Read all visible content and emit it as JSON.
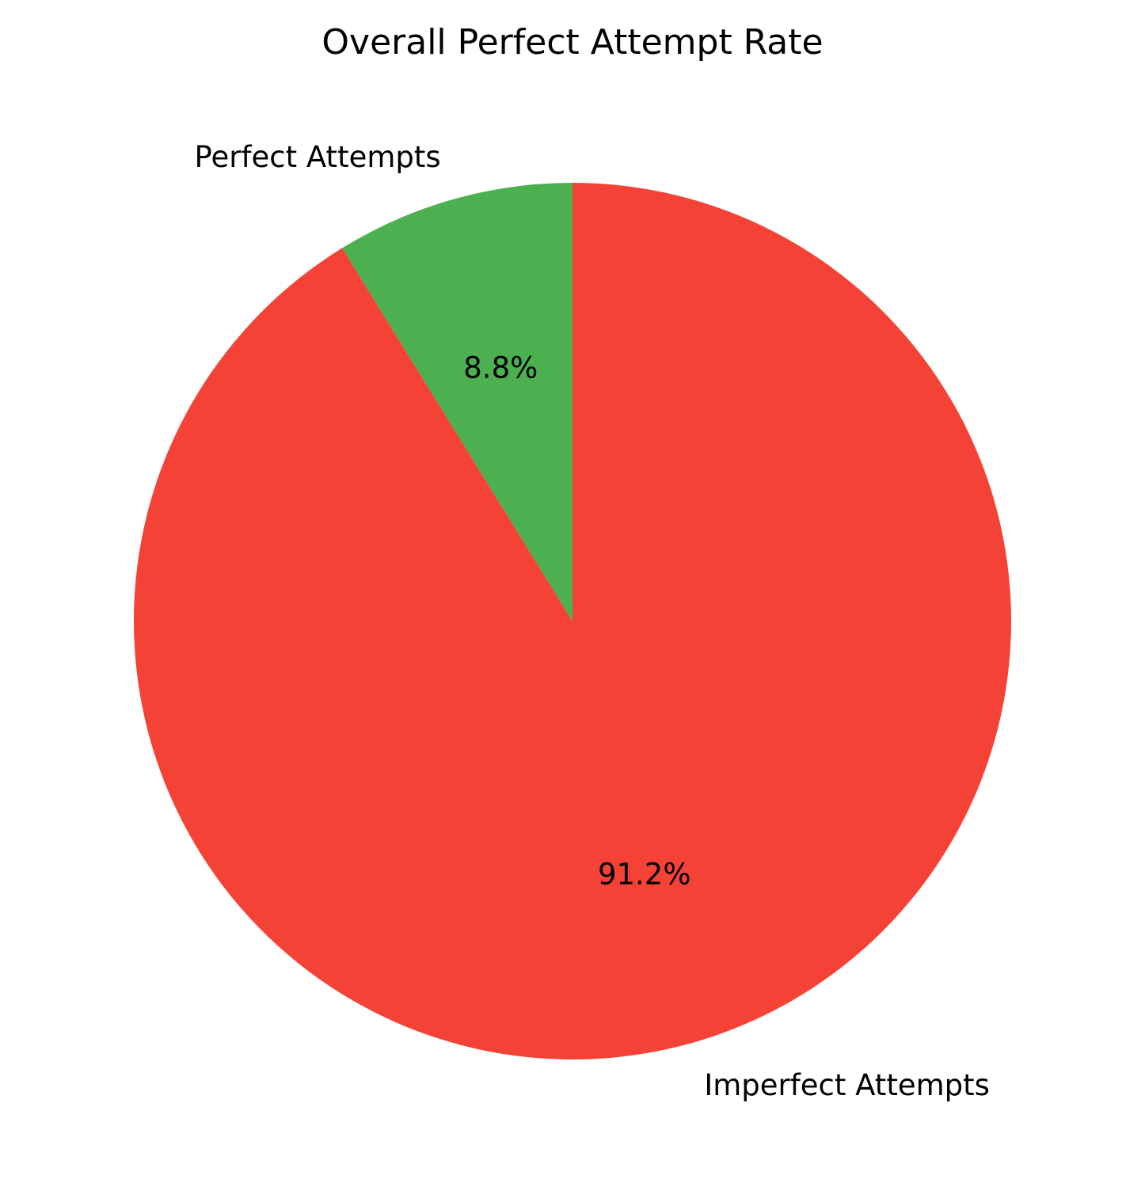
{
  "chart_data": {
    "type": "pie",
    "title": "Overall Perfect Attempt Rate",
    "start_angle_deg": 90,
    "direction": "counterclockwise",
    "slices": [
      {
        "label": "Perfect Attempts",
        "value": 8.8,
        "pct_label": "8.8%",
        "color": "#4caf50"
      },
      {
        "label": "Imperfect Attempts",
        "value": 91.2,
        "pct_label": "91.2%",
        "color": "#f44336"
      }
    ]
  }
}
